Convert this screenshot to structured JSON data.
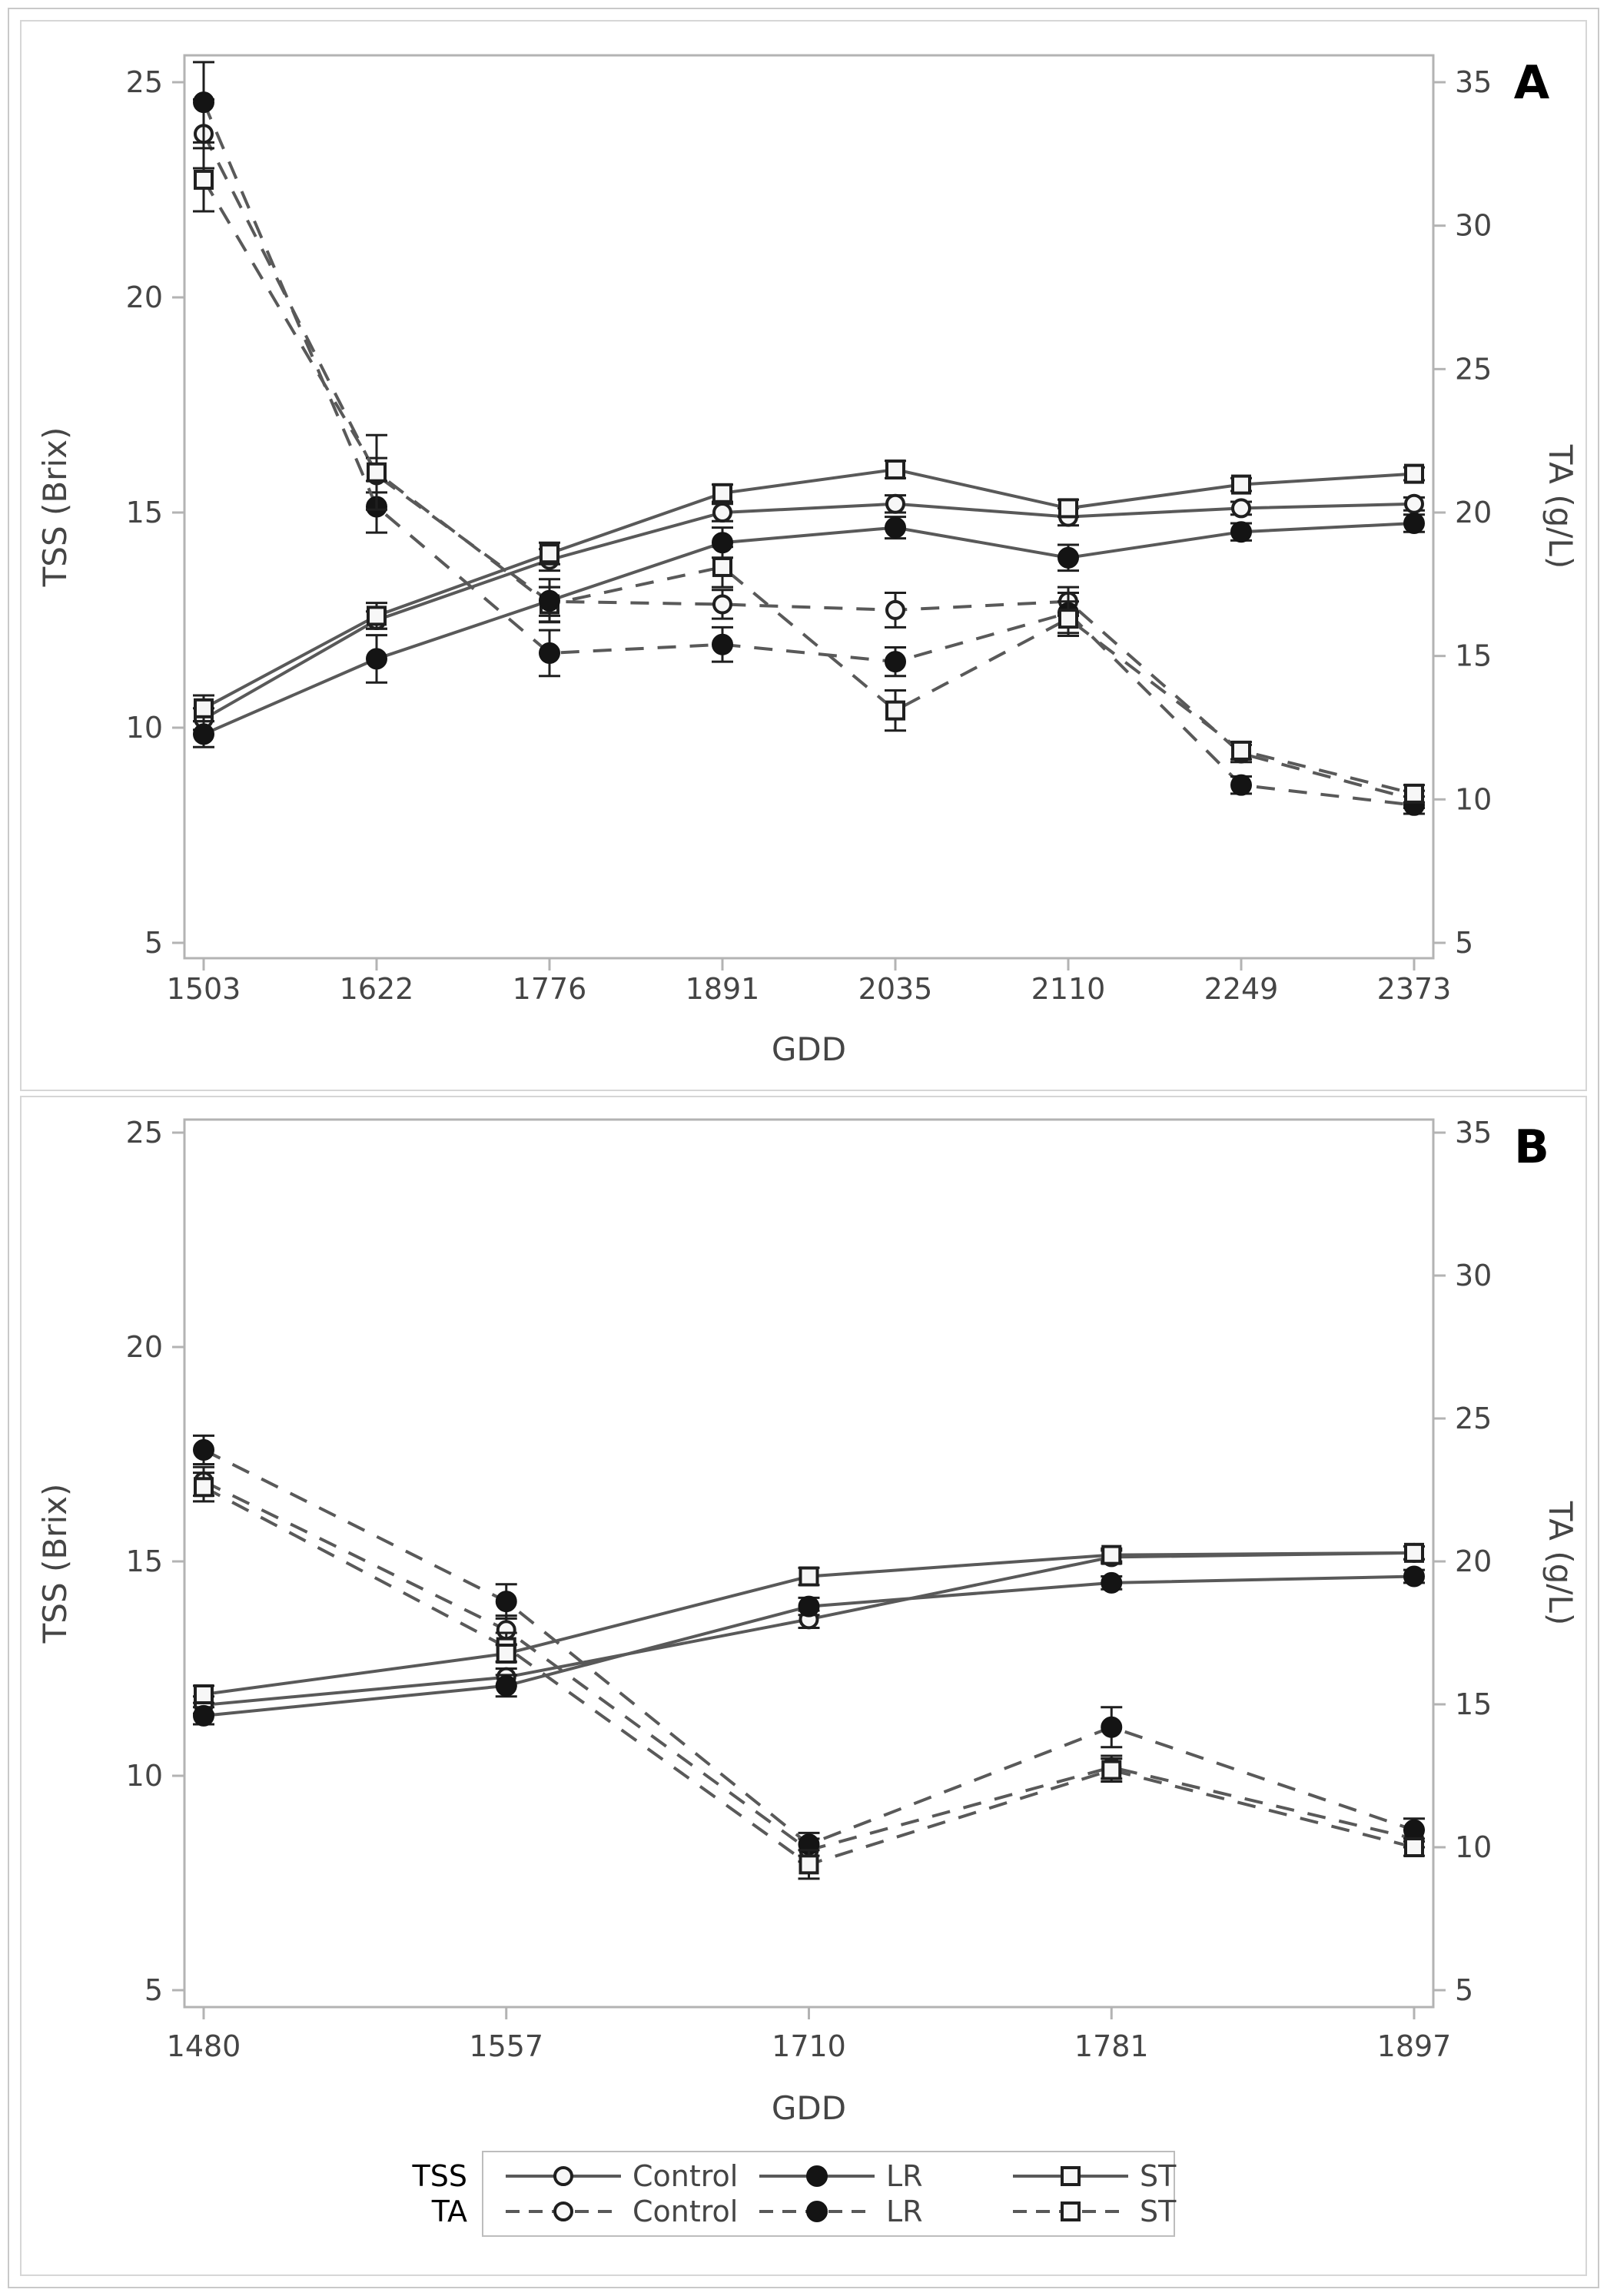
{
  "figure": {
    "description": "Two stacked line charts (panels A and B) of TSS and TA versus GDD for three treatments",
    "panels": [
      "A",
      "B"
    ]
  },
  "colors": {
    "background": "#ffffff",
    "outer_border": "#c9c9c9",
    "panel_border": "#d6d6d6",
    "axis": "#b3b3b3",
    "tick_text": "#454545",
    "line": "#595959",
    "error_bar": "#1f1f1f",
    "marker_stroke": "#1f1f1f",
    "marker_fill_open": "#f7f7f7",
    "marker_fill_solid": "#141414",
    "panel_letter": "#000000",
    "legend_border": "#bdbdbd"
  },
  "chart_data": [
    {
      "panel_label": "A",
      "type": "line",
      "xlabel": "GDD",
      "x_categories": [
        "1503",
        "1622",
        "1776",
        "1891",
        "2035",
        "2110",
        "2249",
        "2373"
      ],
      "left_axis": {
        "label": "TSS (Brix)",
        "ticks": [
          5,
          10,
          15,
          20,
          25
        ],
        "range": [
          5,
          25
        ]
      },
      "right_axis": {
        "label": "TA (g/L)",
        "ticks": [
          5,
          10,
          15,
          20,
          25,
          30,
          35
        ],
        "range": [
          5,
          35
        ]
      },
      "grid": false,
      "series": [
        {
          "group": "TA",
          "name": "Control",
          "axis": "right",
          "line_style": "dashed",
          "marker": "open-circle",
          "values": [
            33.2,
            21.3,
            16.9,
            16.8,
            16.6,
            16.9,
            11.6,
            10.0
          ],
          "errors": [
            1.2,
            0.6,
            0.5,
            0.5,
            0.6,
            0.5,
            0.3,
            0.3
          ]
        },
        {
          "group": "TA",
          "name": "LR",
          "axis": "right",
          "line_style": "dashed",
          "marker": "filled-circle",
          "values": [
            34.3,
            20.2,
            15.1,
            15.4,
            14.8,
            16.5,
            10.5,
            9.8
          ],
          "errors": [
            1.4,
            0.9,
            0.8,
            0.6,
            0.5,
            0.7,
            0.3,
            0.3
          ]
        },
        {
          "group": "TA",
          "name": "ST",
          "axis": "right",
          "line_style": "dashed",
          "marker": "open-square",
          "values": [
            31.6,
            21.4,
            16.8,
            18.1,
            13.1,
            16.3,
            11.7,
            10.2
          ],
          "errors": [
            1.1,
            1.3,
            0.6,
            0.7,
            0.7,
            0.6,
            0.3,
            0.3
          ]
        },
        {
          "group": "TSS",
          "name": "Control",
          "axis": "left",
          "line_style": "solid",
          "marker": "open-circle",
          "values": [
            10.2,
            12.5,
            13.9,
            15.0,
            15.2,
            14.9,
            15.1,
            15.2
          ],
          "errors": [
            0.25,
            0.2,
            0.25,
            0.2,
            0.2,
            0.2,
            0.15,
            0.15
          ]
        },
        {
          "group": "TSS",
          "name": "LR",
          "axis": "left",
          "line_style": "solid",
          "marker": "filled-circle",
          "values": [
            9.85,
            11.6,
            12.95,
            14.3,
            14.65,
            13.95,
            14.55,
            14.75
          ],
          "errors": [
            0.3,
            0.55,
            0.5,
            0.35,
            0.25,
            0.3,
            0.2,
            0.2
          ]
        },
        {
          "group": "TSS",
          "name": "ST",
          "axis": "left",
          "line_style": "solid",
          "marker": "open-square",
          "values": [
            10.45,
            12.6,
            14.05,
            15.45,
            16.0,
            15.1,
            15.65,
            15.9
          ],
          "errors": [
            0.3,
            0.3,
            0.25,
            0.2,
            0.2,
            0.2,
            0.15,
            0.15
          ]
        }
      ]
    },
    {
      "panel_label": "B",
      "type": "line",
      "xlabel": "GDD",
      "x_categories": [
        "1480",
        "1557",
        "1710",
        "1781",
        "1897"
      ],
      "left_axis": {
        "label": "TSS (Brix)",
        "ticks": [
          5,
          10,
          15,
          20,
          25
        ],
        "range": [
          5,
          25
        ]
      },
      "right_axis": {
        "label": "TA (g/L)",
        "ticks": [
          5,
          10,
          15,
          20,
          25,
          30,
          35
        ],
        "range": [
          5,
          35
        ]
      },
      "grid": false,
      "series": [
        {
          "group": "TA",
          "name": "Control",
          "axis": "right",
          "line_style": "dashed",
          "marker": "open-circle",
          "values": [
            22.8,
            17.6,
            9.9,
            12.8,
            10.3
          ],
          "errors": [
            0.5,
            0.5,
            0.4,
            0.4,
            0.3
          ]
        },
        {
          "group": "TA",
          "name": "LR",
          "axis": "right",
          "line_style": "dashed",
          "marker": "filled-circle",
          "values": [
            23.9,
            18.6,
            10.1,
            14.2,
            10.6
          ],
          "errors": [
            0.5,
            0.6,
            0.4,
            0.7,
            0.4
          ]
        },
        {
          "group": "TA",
          "name": "ST",
          "axis": "right",
          "line_style": "dashed",
          "marker": "open-square",
          "values": [
            22.6,
            17.0,
            9.4,
            12.7,
            10.0
          ],
          "errors": [
            0.5,
            0.5,
            0.5,
            0.4,
            0.3
          ]
        },
        {
          "group": "TSS",
          "name": "Control",
          "axis": "left",
          "line_style": "solid",
          "marker": "open-circle",
          "values": [
            11.65,
            12.3,
            13.65,
            15.1,
            15.2
          ],
          "errors": [
            0.2,
            0.2,
            0.2,
            0.15,
            0.15
          ]
        },
        {
          "group": "TSS",
          "name": "LR",
          "axis": "left",
          "line_style": "solid",
          "marker": "filled-circle",
          "values": [
            11.4,
            12.1,
            13.95,
            14.5,
            14.65
          ],
          "errors": [
            0.2,
            0.25,
            0.2,
            0.15,
            0.15
          ]
        },
        {
          "group": "TSS",
          "name": "ST",
          "axis": "left",
          "line_style": "solid",
          "marker": "open-square",
          "values": [
            11.9,
            12.85,
            14.65,
            15.15,
            15.2
          ],
          "errors": [
            0.2,
            0.2,
            0.2,
            0.15,
            0.15
          ]
        }
      ]
    }
  ],
  "legend": {
    "position": "bottom",
    "rows": [
      {
        "group": "TSS",
        "line_style": "solid",
        "entries": [
          {
            "label": "Control",
            "marker": "open-circle"
          },
          {
            "label": "LR",
            "marker": "filled-circle"
          },
          {
            "label": "ST",
            "marker": "open-square"
          }
        ]
      },
      {
        "group": "TA",
        "line_style": "dashed",
        "entries": [
          {
            "label": "Control",
            "marker": "open-circle"
          },
          {
            "label": "LR",
            "marker": "filled-circle"
          },
          {
            "label": "ST",
            "marker": "open-square"
          }
        ]
      }
    ]
  }
}
